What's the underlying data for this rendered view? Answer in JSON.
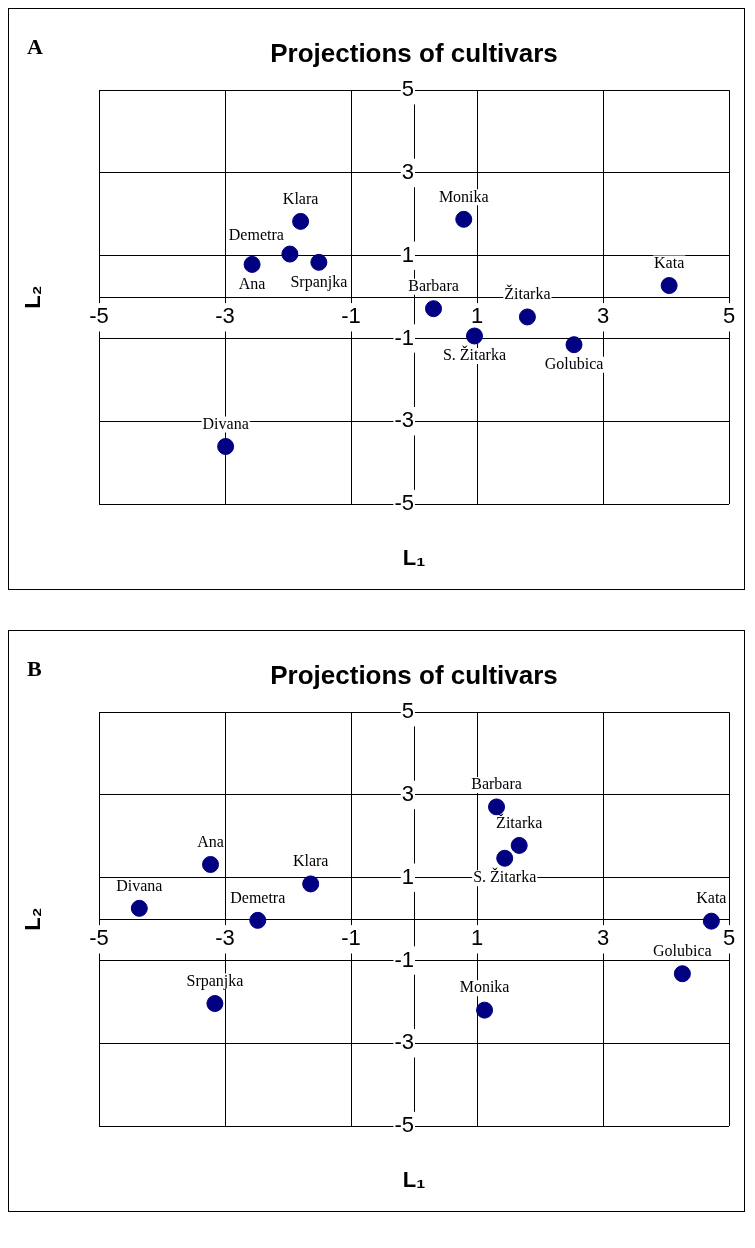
{
  "chart_data": [
    {
      "type": "scatter",
      "title": "Projections of cultivars",
      "xlabel": "L₁",
      "ylabel": "L₂",
      "color": "#000080",
      "marker": "circle",
      "grid": true,
      "legend": false,
      "x": [
        -1.8,
        -1.97,
        -2.57,
        -1.51,
        0.79,
        0.31,
        0.96,
        1.8,
        2.54,
        4.05,
        -2.99
      ],
      "values": [
        1.83,
        1.04,
        0.79,
        0.84,
        1.88,
        -0.28,
        -0.94,
        -0.48,
        -1.15,
        0.28,
        -3.61
      ],
      "xlim": [
        -5,
        5
      ],
      "ylim": [
        -5,
        5
      ],
      "xticks": [
        -5,
        -3,
        -1,
        1,
        3,
        5
      ],
      "yticks": [
        -5,
        -3,
        -1,
        1,
        3,
        5
      ],
      "annotations": [
        "A",
        {
          "text": "Klara",
          "x": -1.8,
          "y": 1.83
        },
        {
          "text": "Demetra",
          "x": -1.97,
          "y": 1.04
        },
        {
          "text": "Ana",
          "x": -2.57,
          "y": 0.79
        },
        {
          "text": "Srpanjka",
          "x": -1.51,
          "y": 0.84
        },
        {
          "text": "Monika",
          "x": 0.79,
          "y": 1.88
        },
        {
          "text": "Barbara",
          "x": 0.31,
          "y": -0.28
        },
        {
          "text": "S. Žitarka",
          "x": 0.96,
          "y": -0.94
        },
        {
          "text": "Žitarka",
          "x": 1.8,
          "y": -0.48
        },
        {
          "text": "Golubica",
          "x": 2.54,
          "y": -1.15
        },
        {
          "text": "Kata",
          "x": 4.05,
          "y": 0.28
        },
        {
          "text": "Divana",
          "x": -2.99,
          "y": -3.61
        }
      ]
    },
    {
      "type": "scatter",
      "title": "Projections of cultivars",
      "xlabel": "L₁",
      "ylabel": "L₂",
      "color": "#000080",
      "marker": "circle",
      "grid": true,
      "legend": false,
      "x": [
        1.31,
        1.67,
        1.44,
        -3.23,
        -1.64,
        -4.36,
        -2.48,
        4.72,
        4.26,
        1.12,
        -3.16
      ],
      "values": [
        2.71,
        1.78,
        1.47,
        1.32,
        0.85,
        0.26,
        -0.03,
        -0.05,
        -1.32,
        -2.2,
        -2.04
      ],
      "xlim": [
        -5,
        5
      ],
      "ylim": [
        -5,
        5
      ],
      "xticks": [
        -5,
        -3,
        -1,
        1,
        3,
        5
      ],
      "yticks": [
        -5,
        -3,
        -1,
        1,
        3,
        5
      ],
      "annotations": [
        "B",
        {
          "text": "Barbara",
          "x": 1.31,
          "y": 2.71
        },
        {
          "text": "Žitarka",
          "x": 1.67,
          "y": 1.78
        },
        {
          "text": "S. Žitarka",
          "x": 1.44,
          "y": 1.47
        },
        {
          "text": "Ana",
          "x": -3.23,
          "y": 1.32
        },
        {
          "text": "Klara",
          "x": -1.64,
          "y": 0.85
        },
        {
          "text": "Divana",
          "x": -4.36,
          "y": 0.26
        },
        {
          "text": "Demetra",
          "x": -2.48,
          "y": -0.03
        },
        {
          "text": "Kata",
          "x": 4.72,
          "y": -0.05
        },
        {
          "text": "Golubica",
          "x": 4.26,
          "y": -1.32
        },
        {
          "text": "Monika",
          "x": 1.12,
          "y": -2.2
        },
        {
          "text": "Srpanjka",
          "x": -3.16,
          "y": -2.04
        }
      ]
    }
  ]
}
